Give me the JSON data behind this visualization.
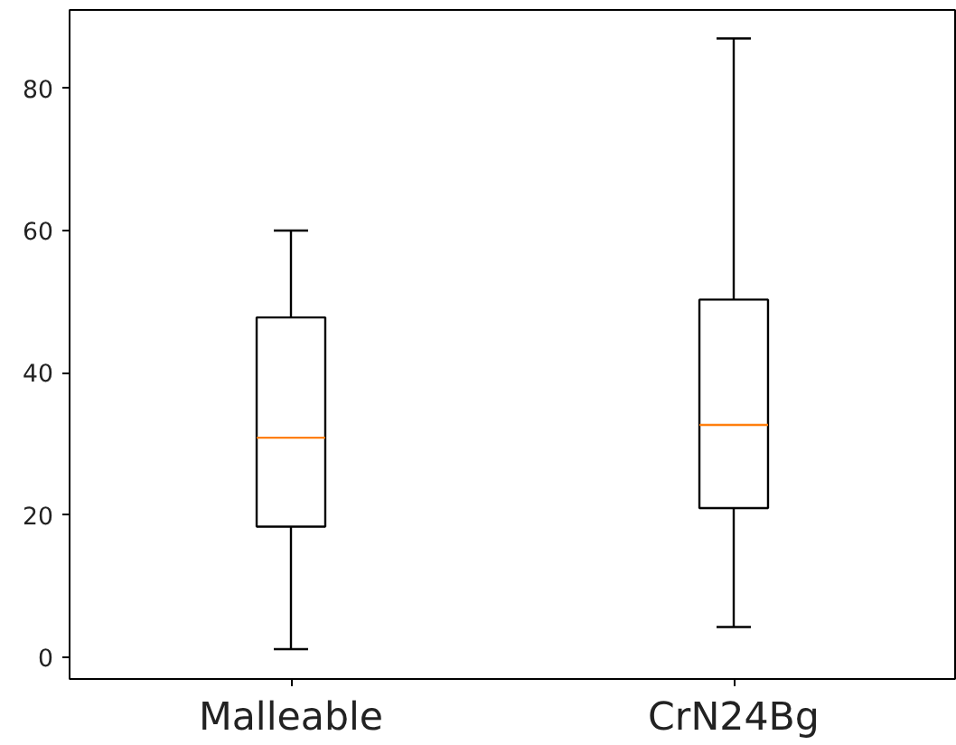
{
  "chart_data": {
    "type": "box",
    "categories": [
      "Malleable",
      "CrN24Bg"
    ],
    "boxes": [
      {
        "low": 1.2,
        "q1": 18.4,
        "median": 30.9,
        "q3": 47.8,
        "high": 60
      },
      {
        "low": 4.3,
        "q1": 21.0,
        "median": 32.7,
        "q3": 50.3,
        "high": 87
      }
    ],
    "color": "#000000",
    "ylim": [
      -3,
      91
    ],
    "yticks": [
      0,
      20,
      40,
      60,
      80
    ],
    "grid": false
  }
}
